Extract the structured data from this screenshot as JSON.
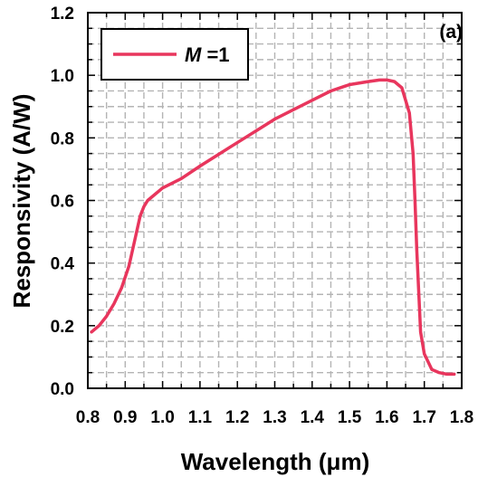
{
  "chart_data": {
    "type": "line",
    "panel_label": "(a)",
    "xlabel": "Wavelength (μm)",
    "ylabel": "Responsivity (A/W)",
    "xlim": [
      0.8,
      1.8
    ],
    "ylim": [
      0.0,
      1.2
    ],
    "x_ticks": [
      "0.8",
      "0.9",
      "1.0",
      "1.1",
      "1.2",
      "1.3",
      "1.4",
      "1.5",
      "1.6",
      "1.7",
      "1.8"
    ],
    "y_ticks": [
      "0.0",
      "0.2",
      "0.4",
      "0.6",
      "0.8",
      "1.0",
      "1.2"
    ],
    "grid": true,
    "legend_position": "top-left",
    "series": [
      {
        "name": "M =1",
        "legend_var": "M",
        "legend_value": " =1",
        "color": "#e8365d",
        "x": [
          0.81,
          0.83,
          0.85,
          0.87,
          0.89,
          0.91,
          0.925,
          0.94,
          0.95,
          0.96,
          0.98,
          1.0,
          1.05,
          1.1,
          1.14,
          1.18,
          1.22,
          1.26,
          1.3,
          1.35,
          1.4,
          1.45,
          1.5,
          1.55,
          1.58,
          1.6,
          1.62,
          1.64,
          1.66,
          1.67,
          1.675,
          1.68,
          1.69,
          1.7,
          1.72,
          1.74,
          1.76,
          1.78
        ],
        "y": [
          0.18,
          0.2,
          0.23,
          0.27,
          0.32,
          0.39,
          0.47,
          0.55,
          0.58,
          0.6,
          0.62,
          0.64,
          0.67,
          0.71,
          0.74,
          0.77,
          0.8,
          0.83,
          0.86,
          0.89,
          0.92,
          0.95,
          0.97,
          0.98,
          0.985,
          0.985,
          0.98,
          0.96,
          0.88,
          0.75,
          0.6,
          0.44,
          0.18,
          0.11,
          0.06,
          0.05,
          0.045,
          0.045
        ]
      }
    ]
  }
}
